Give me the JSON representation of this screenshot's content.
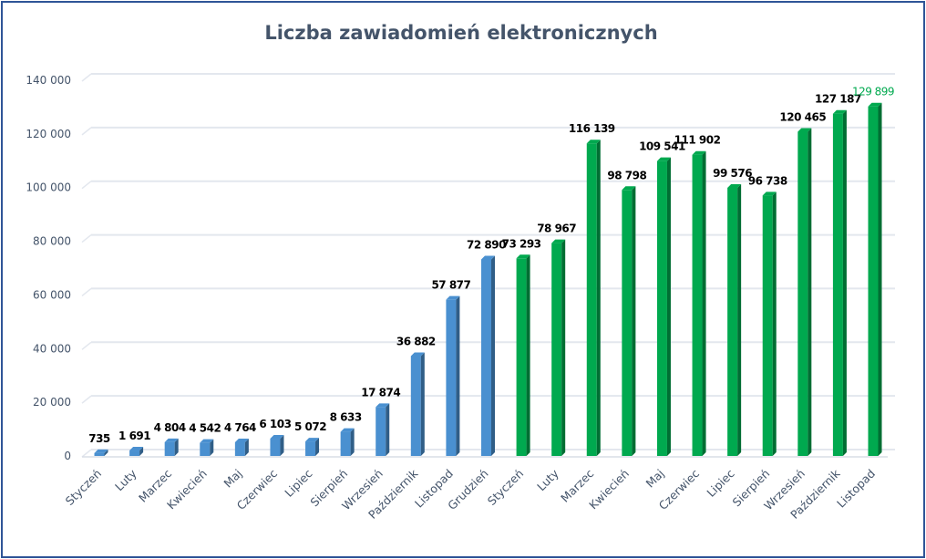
{
  "chart_data": {
    "type": "bar",
    "title": "Liczba zawiadomień  elektronicznych",
    "xlabel": "",
    "ylabel": "",
    "ylim": [
      0,
      140000
    ],
    "yticks": [
      0,
      20000,
      40000,
      60000,
      80000,
      100000,
      120000,
      140000
    ],
    "ytick_labels": [
      "0",
      "20 000",
      "40 000",
      "60 000",
      "80 000",
      "100 000",
      "120 000",
      "140 000"
    ],
    "grid": true,
    "legend": "none",
    "categories": [
      "Styczeń",
      "Luty",
      "Marzec",
      "Kwiecień",
      "Maj",
      "Czerwiec",
      "Lipiec",
      "Sierpień",
      "Wrzesień",
      "Październik",
      "Listopad",
      "Grudzień",
      "Styczeń",
      "Luty",
      "Marzec",
      "Kwiecień",
      "Maj",
      "Czerwiec",
      "Lipiec",
      "Sierpień",
      "Wrzesień",
      "Październik",
      "Listopad"
    ],
    "values": [
      735,
      1691,
      4804,
      4542,
      4764,
      6103,
      5072,
      8633,
      17874,
      36882,
      57877,
      72890,
      73293,
      78967,
      116139,
      98798,
      109541,
      111902,
      99576,
      96738,
      120465,
      127187,
      129899
    ],
    "data_labels": [
      "735",
      "1 691",
      "4 804",
      "4 542",
      "4 764",
      "6 103",
      "5 072",
      "8 633",
      "17 874",
      "36 882",
      "57 877",
      "72 890",
      "73 293",
      "78 967",
      "116 139",
      "98 798",
      "109 541",
      "111 902",
      "99 576",
      "96 738",
      "120 465",
      "127 187",
      "129 899"
    ],
    "bar_colors": [
      "#4a90d0",
      "#4a90d0",
      "#4a90d0",
      "#4a90d0",
      "#4a90d0",
      "#4a90d0",
      "#4a90d0",
      "#4a90d0",
      "#4a90d0",
      "#4a90d0",
      "#4a90d0",
      "#4a90d0",
      "#00a94f",
      "#00a94f",
      "#00a94f",
      "#00a94f",
      "#00a94f",
      "#00a94f",
      "#00a94f",
      "#00a94f",
      "#00a94f",
      "#00a94f",
      "#00a94f"
    ],
    "highlight_label_color": "#00a94f",
    "border_color": "#2f5597"
  }
}
